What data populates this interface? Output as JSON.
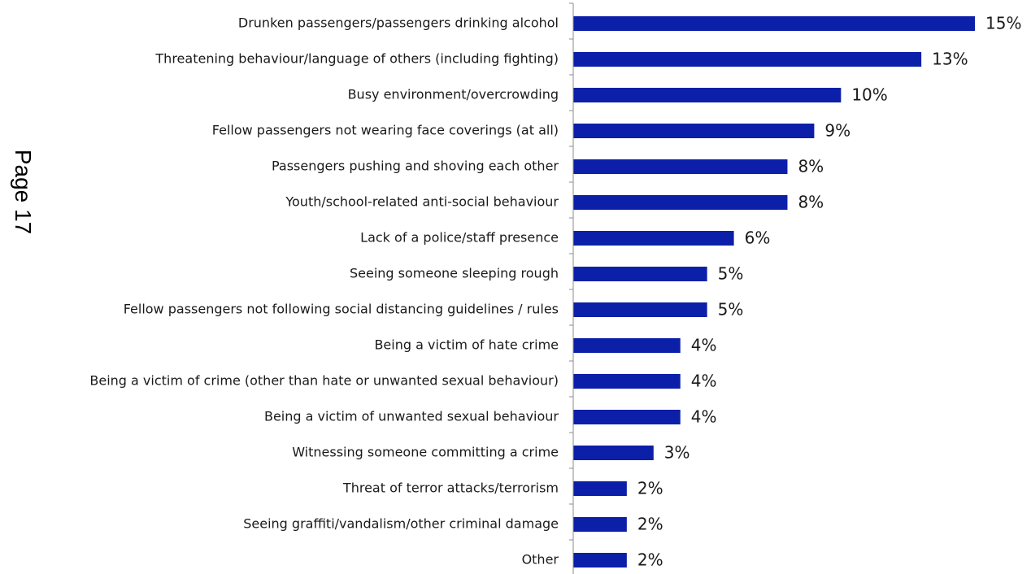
{
  "page_label": "Page 17",
  "colors": {
    "bar": "#0c1fa8",
    "axis": "#8c8c8c",
    "text": "#1a1a1a"
  },
  "chart_data": {
    "type": "bar",
    "orientation": "horizontal",
    "categories": [
      "Drunken passengers/passengers drinking alcohol",
      "Threatening behaviour/language of others (including fighting)",
      "Busy environment/overcrowding",
      "Fellow passengers not wearing face coverings (at all)",
      "Passengers pushing and shoving each other",
      "Youth/school-related anti-social behaviour",
      "Lack of a police/staff presence",
      "Seeing someone sleeping rough",
      "Fellow passengers not following social distancing guidelines / rules",
      "Being a victim of hate crime",
      "Being a victim of crime (other than hate or unwanted sexual behaviour)",
      "Being a victim of unwanted sexual behaviour",
      "Witnessing someone committing a crime",
      "Threat of terror attacks/terrorism",
      "Seeing graffiti/vandalism/other criminal damage",
      "Other"
    ],
    "values": [
      15,
      13,
      10,
      9,
      8,
      8,
      6,
      5,
      5,
      4,
      4,
      4,
      3,
      2,
      2,
      2
    ],
    "data_labels": [
      "15%",
      "13%",
      "10%",
      "9%",
      "8%",
      "8%",
      "6%",
      "5%",
      "5%",
      "4%",
      "4%",
      "4%",
      "3%",
      "2%",
      "2%",
      "2%"
    ],
    "unit": "%",
    "title": "",
    "xlabel": "",
    "ylabel": "",
    "xlim": [
      0,
      15
    ],
    "grid": false,
    "legend": "none"
  }
}
